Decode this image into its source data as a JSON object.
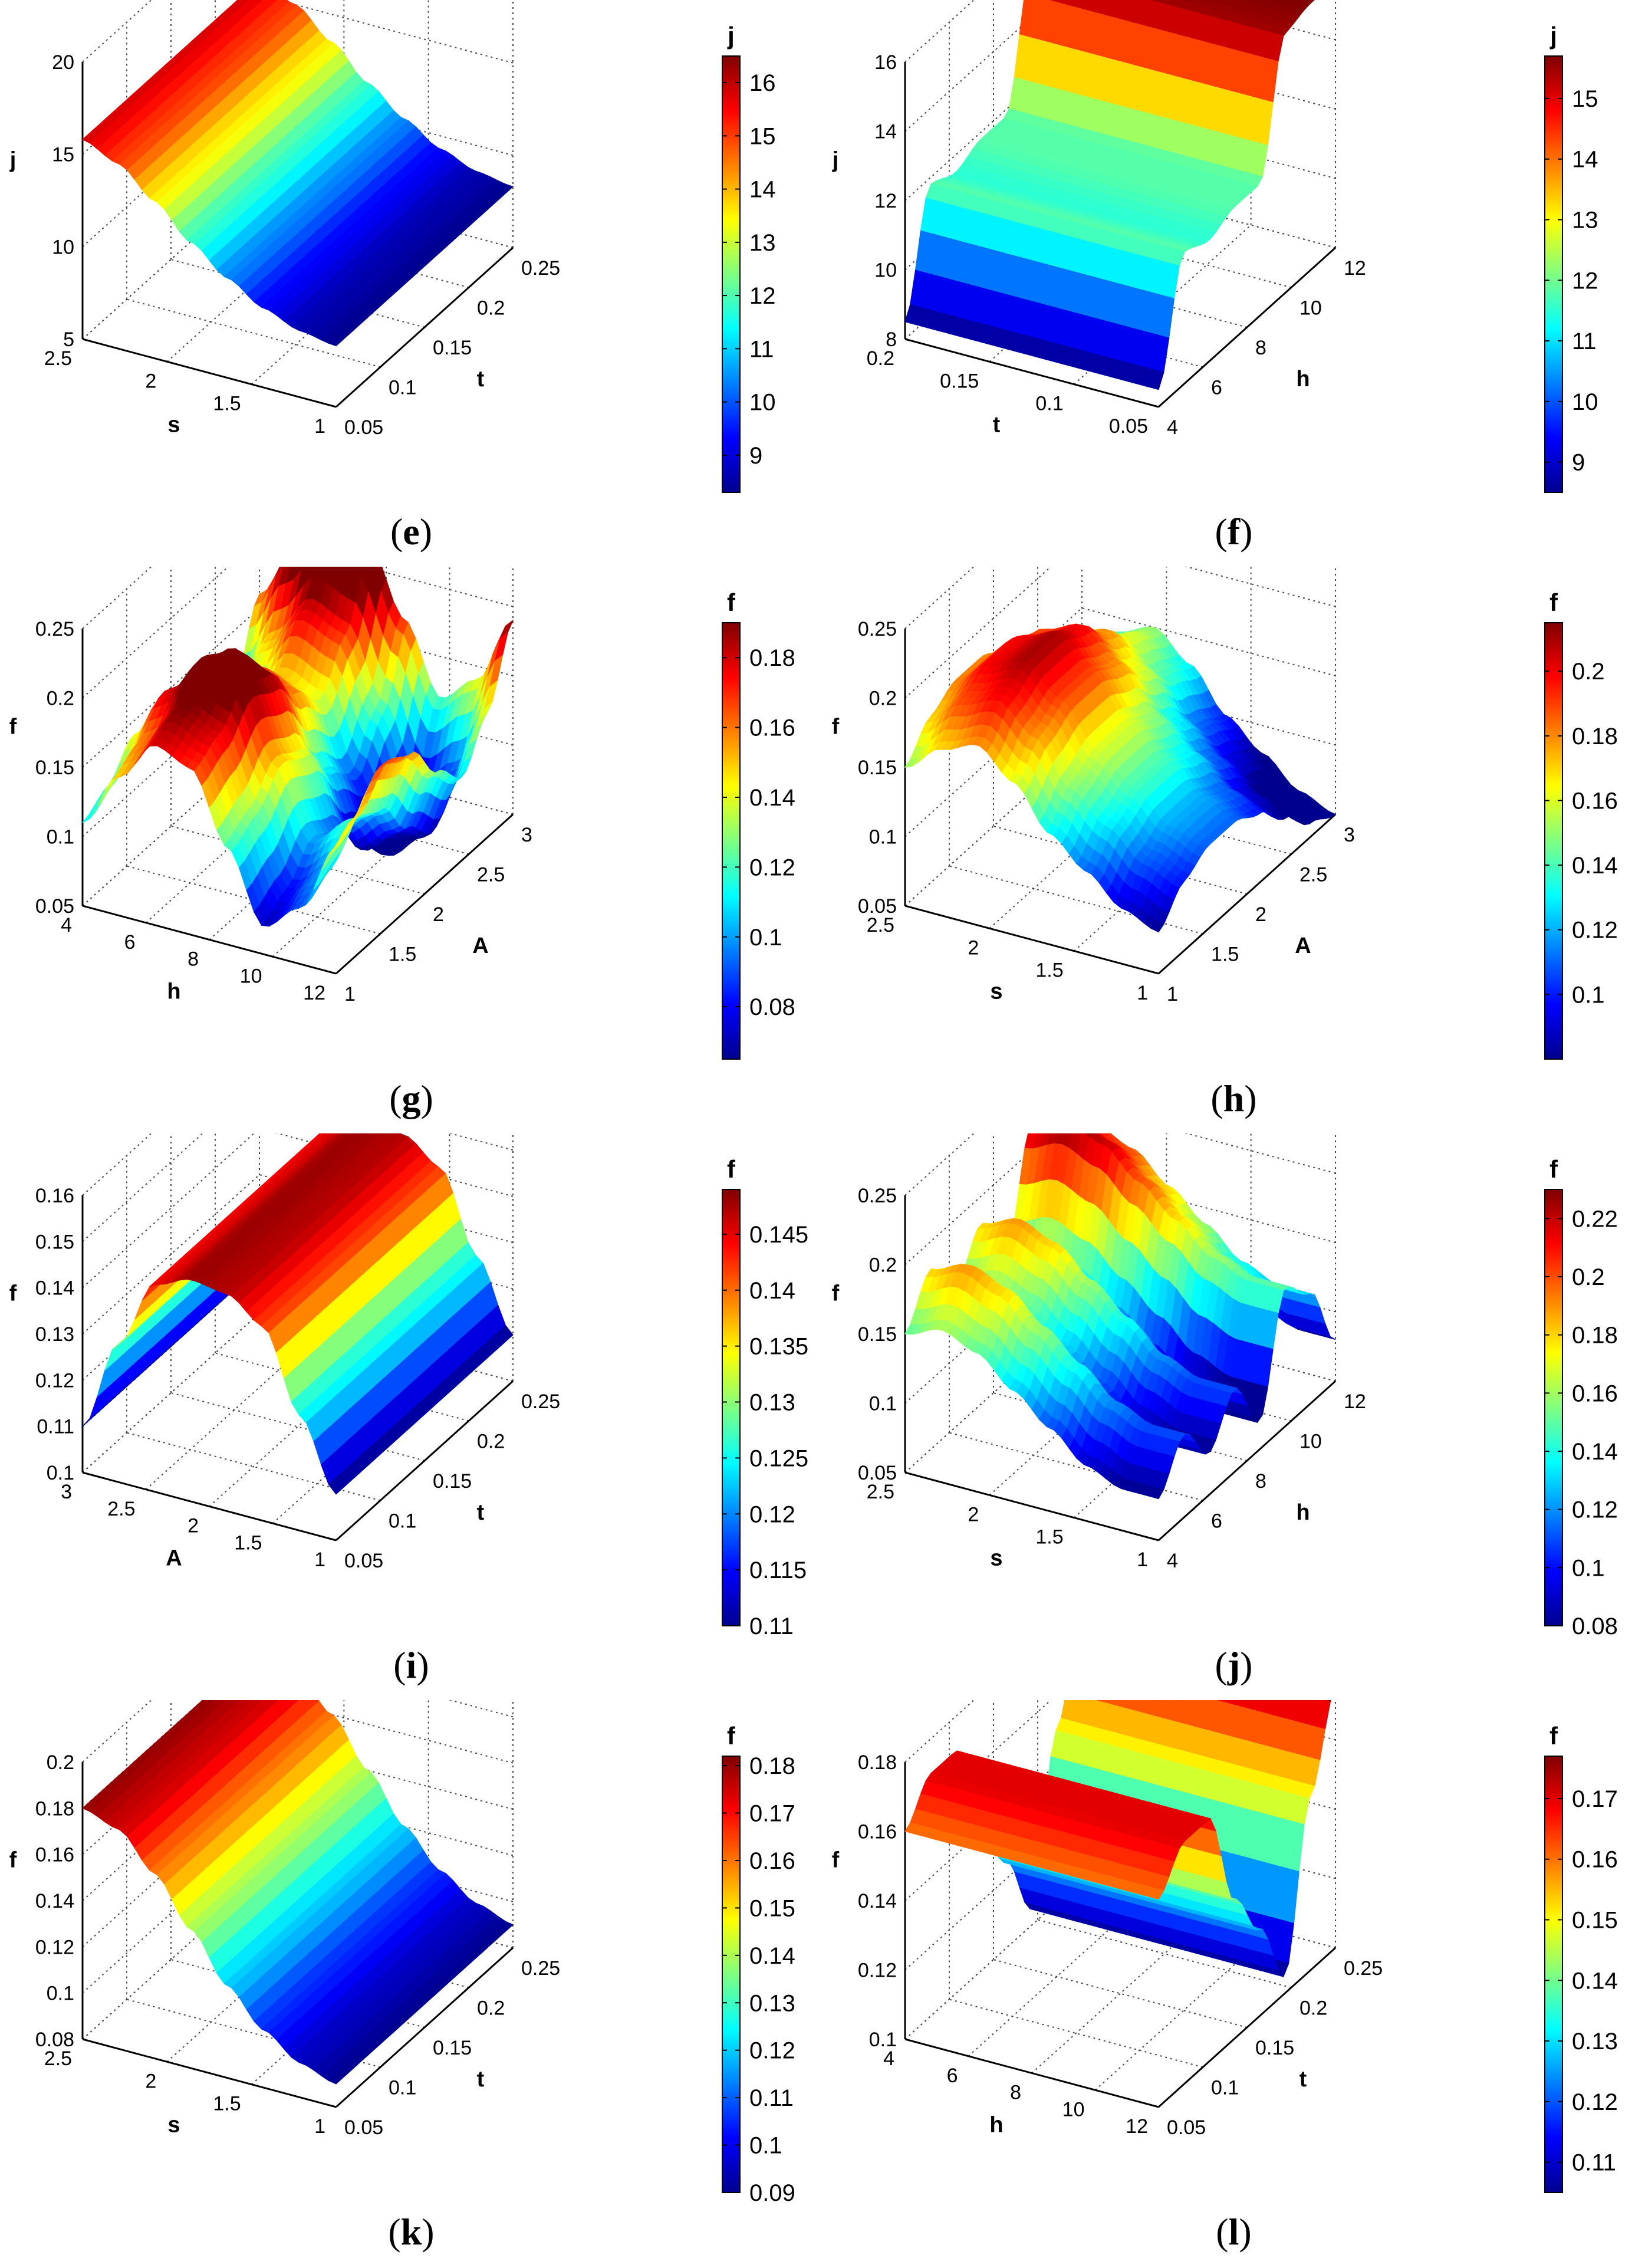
{
  "chart_data": [
    {
      "panel": "e",
      "type": "surface",
      "axes": {
        "z": {
          "label": "j",
          "ticks": [
            "20",
            "15",
            "10",
            "5"
          ]
        },
        "left": {
          "label": "s",
          "ticks": [
            "2.5",
            "2",
            "1.5",
            "1"
          ]
        },
        "right": {
          "label": "t",
          "ticks": [
            "0.05",
            "0.1",
            "0.15",
            "0.2",
            "0.25"
          ]
        }
      },
      "zlim": [
        5,
        20
      ],
      "surface": {
        "rows": [
          15.8,
          15.0,
          13.5,
          11.8,
          10.4,
          9.3,
          8.6,
          8.3
        ],
        "cols": [
          0,
          0,
          0,
          0,
          0,
          0,
          0,
          0
        ]
      },
      "colorbar": {
        "title": "j",
        "ticks": [
          "16",
          "15",
          "14",
          "13",
          "12",
          "11",
          "10",
          "9"
        ],
        "range": [
          8.3,
          16.5
        ]
      }
    },
    {
      "panel": "f",
      "type": "surface",
      "axes": {
        "z": {
          "label": "j",
          "ticks": [
            "16",
            "14",
            "12",
            "10",
            "8"
          ]
        },
        "left": {
          "label": "t",
          "ticks": [
            "0.2",
            "0.15",
            "0.1",
            "0.05"
          ]
        },
        "right": {
          "label": "h",
          "ticks": [
            "4",
            "6",
            "8",
            "10",
            "12"
          ]
        }
      },
      "zlim": [
        8,
        16
      ],
      "surface": {
        "rows": [
          0,
          0,
          0,
          0,
          0,
          0,
          0,
          0
        ],
        "cols": [
          8.5,
          11.8,
          11.5,
          11.8,
          11.8,
          15.5,
          15.7,
          15.7
        ]
      },
      "colorbar": {
        "title": "j",
        "ticks": [
          "15",
          "14",
          "13",
          "12",
          "11",
          "10",
          "9"
        ],
        "range": [
          8.5,
          15.7
        ]
      }
    },
    {
      "panel": "g",
      "type": "surface",
      "axes": {
        "z": {
          "label": "f",
          "ticks": [
            "0.25",
            "0.2",
            "0.15",
            "0.1",
            "0.05"
          ]
        },
        "left": {
          "label": "h",
          "ticks": [
            "4",
            "6",
            "8",
            "10",
            "12"
          ]
        },
        "right": {
          "label": "A",
          "ticks": [
            "1",
            "1.5",
            "2",
            "2.5",
            "3"
          ]
        }
      },
      "zlim": [
        0.05,
        0.25
      ],
      "surface": {
        "rows": [
          0.11,
          0.15,
          0.18,
          0.17,
          0.12,
          0.07,
          0.09,
          0.14
        ],
        "cols": [
          0,
          0.01,
          0.03,
          0.02,
          -0.01,
          -0.03,
          0.0,
          0.05
        ]
      },
      "colorbar": {
        "title": "f",
        "ticks": [
          "0.18",
          "0.16",
          "0.14",
          "0.12",
          "0.1",
          "0.08"
        ],
        "range": [
          0.065,
          0.19
        ]
      }
    },
    {
      "panel": "h",
      "type": "surface",
      "axes": {
        "z": {
          "label": "f",
          "ticks": [
            "0.25",
            "0.2",
            "0.15",
            "0.1",
            "0.05"
          ]
        },
        "left": {
          "label": "s",
          "ticks": [
            "2.5",
            "2",
            "1.5",
            "1"
          ]
        },
        "right": {
          "label": "A",
          "ticks": [
            "1",
            "1.5",
            "2",
            "2.5",
            "3"
          ]
        }
      },
      "zlim": [
        0.05,
        0.25
      ],
      "surface": {
        "rows": [
          0.15,
          0.17,
          0.18,
          0.16,
          0.13,
          0.11,
          0.09,
          0.08
        ],
        "cols": [
          0,
          0.02,
          0.03,
          0.03,
          0.02,
          0.0,
          -0.02,
          -0.03
        ]
      },
      "colorbar": {
        "title": "f",
        "ticks": [
          "0.2",
          "0.18",
          "0.16",
          "0.14",
          "0.12",
          "0.1"
        ],
        "range": [
          0.08,
          0.215
        ]
      }
    },
    {
      "panel": "i",
      "type": "surface",
      "axes": {
        "z": {
          "label": "f",
          "ticks": [
            "0.16",
            "0.15",
            "0.14",
            "0.13",
            "0.12",
            "0.11",
            "0.1"
          ]
        },
        "left": {
          "label": "A",
          "ticks": [
            "3",
            "2.5",
            "2",
            "1.5",
            "1"
          ]
        },
        "right": {
          "label": "t",
          "ticks": [
            "0.05",
            "0.1",
            "0.15",
            "0.2",
            "0.25"
          ]
        }
      },
      "zlim": [
        0.1,
        0.16
      ],
      "surface": {
        "rows": [
          0.11,
          0.13,
          0.145,
          0.148,
          0.147,
          0.142,
          0.125,
          0.11
        ],
        "cols": [
          0,
          0,
          0,
          0,
          0,
          0,
          0,
          0
        ]
      },
      "colorbar": {
        "title": "f",
        "ticks": [
          "0.145",
          "0.14",
          "0.135",
          "0.13",
          "0.125",
          "0.12",
          "0.115",
          "0.11"
        ],
        "range": [
          0.11,
          0.149
        ]
      }
    },
    {
      "panel": "j",
      "type": "surface",
      "axes": {
        "z": {
          "label": "f",
          "ticks": [
            "0.25",
            "0.2",
            "0.15",
            "0.1",
            "0.05"
          ]
        },
        "left": {
          "label": "s",
          "ticks": [
            "2.5",
            "2",
            "1.5",
            "1"
          ]
        },
        "right": {
          "label": "h",
          "ticks": [
            "4",
            "6",
            "8",
            "10",
            "12"
          ]
        }
      },
      "zlim": [
        0.05,
        0.25
      ],
      "surface": {
        "rows": [
          0.15,
          0.16,
          0.15,
          0.13,
          0.11,
          0.09,
          0.08,
          0.08
        ],
        "cols": [
          0,
          0.03,
          0.0,
          0.03,
          -0.01,
          0.07,
          0.05,
          0.0
        ]
      },
      "colorbar": {
        "title": "f",
        "ticks": [
          "0.22",
          "0.2",
          "0.18",
          "0.16",
          "0.14",
          "0.12",
          "0.1",
          "0.08"
        ],
        "range": [
          0.08,
          0.23
        ]
      }
    },
    {
      "panel": "k",
      "type": "surface",
      "axes": {
        "z": {
          "label": "f",
          "ticks": [
            "0.2",
            "0.18",
            "0.16",
            "0.14",
            "0.12",
            "0.1",
            "0.08"
          ]
        },
        "left": {
          "label": "s",
          "ticks": [
            "2.5",
            "2",
            "1.5",
            "1"
          ]
        },
        "right": {
          "label": "t",
          "ticks": [
            "0.05",
            "0.1",
            "0.15",
            "0.2",
            "0.25"
          ]
        }
      },
      "zlim": [
        0.08,
        0.2
      ],
      "surface": {
        "rows": [
          0.18,
          0.175,
          0.16,
          0.14,
          0.12,
          0.105,
          0.095,
          0.09
        ],
        "cols": [
          0,
          0,
          0,
          0,
          0,
          0,
          0,
          0
        ]
      },
      "colorbar": {
        "title": "f",
        "ticks": [
          "0.18",
          "0.17",
          "0.16",
          "0.15",
          "0.14",
          "0.13",
          "0.12",
          "0.11",
          "0.1",
          "0.09"
        ],
        "range": [
          0.09,
          0.182
        ]
      }
    },
    {
      "panel": "l",
      "type": "surface",
      "axes": {
        "z": {
          "label": "f",
          "ticks": [
            "0.18",
            "0.16",
            "0.14",
            "0.12",
            "0.1"
          ]
        },
        "left": {
          "label": "h",
          "ticks": [
            "4",
            "6",
            "8",
            "10",
            "12"
          ]
        },
        "right": {
          "label": "t",
          "ticks": [
            "0.05",
            "0.1",
            "0.15",
            "0.2",
            "0.25"
          ]
        }
      },
      "zlim": [
        0.1,
        0.18
      ],
      "surface": {
        "rows": [
          0,
          0,
          0,
          0,
          0,
          0,
          0,
          0
        ],
        "cols": [
          0.16,
          0.17,
          0.17,
          0.14,
          0.125,
          0.105,
          0.15,
          0.175
        ]
      },
      "colorbar": {
        "title": "f",
        "ticks": [
          "0.17",
          "0.16",
          "0.15",
          "0.14",
          "0.13",
          "0.12",
          "0.11"
        ],
        "range": [
          0.105,
          0.177
        ]
      }
    }
  ],
  "captions": [
    {
      "open": "(",
      "letter": "e",
      "close": ")"
    },
    {
      "open": "(",
      "letter": "f",
      "close": ")"
    },
    {
      "open": "(",
      "letter": "g",
      "close": ")"
    },
    {
      "open": "(",
      "letter": "h",
      "close": ")"
    },
    {
      "open": "(",
      "letter": "i",
      "close": ")"
    },
    {
      "open": "(",
      "letter": "j",
      "close": ")"
    },
    {
      "open": "(",
      "letter": "k",
      "close": ")"
    },
    {
      "open": "(",
      "letter": "l",
      "close": ")"
    }
  ],
  "colormap": [
    "#00008f",
    "#0000ff",
    "#0080ff",
    "#00ffff",
    "#80ff80",
    "#ffff00",
    "#ff8000",
    "#ff0000",
    "#800000"
  ]
}
